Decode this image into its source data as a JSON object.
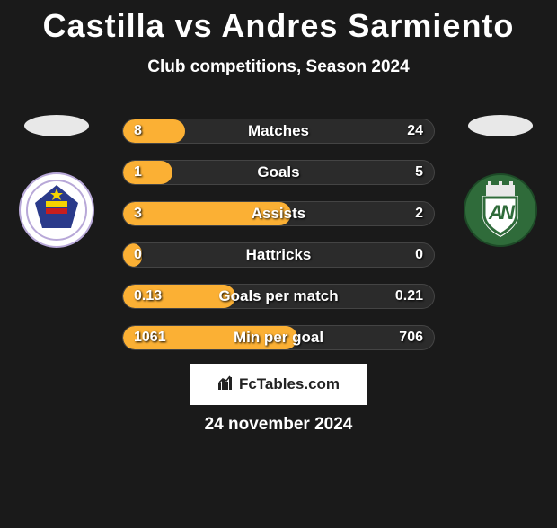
{
  "header": {
    "title": "Castilla vs Andres Sarmiento",
    "subtitle": "Club competitions, Season 2024"
  },
  "bars": {
    "track_color": "#2b2b2b",
    "fill_color": "#fbb034",
    "border_color": "rgba(255,255,255,0.12)",
    "label_fontsize": 17,
    "value_fontsize": 16,
    "rows": [
      {
        "label": "Matches",
        "left": "8",
        "right": "24",
        "fill_pct": 20
      },
      {
        "label": "Goals",
        "left": "1",
        "right": "5",
        "fill_pct": 16
      },
      {
        "label": "Assists",
        "left": "3",
        "right": "2",
        "fill_pct": 54
      },
      {
        "label": "Hattricks",
        "left": "0",
        "right": "0",
        "fill_pct": 6
      },
      {
        "label": "Goals per match",
        "left": "0.13",
        "right": "0.21",
        "fill_pct": 36
      },
      {
        "label": "Min per goal",
        "left": "1061",
        "right": "706",
        "fill_pct": 56
      }
    ]
  },
  "players": {
    "left_club": {
      "bg": "#ffffff",
      "ring": "#b8a8d8"
    },
    "right_club": {
      "bg": "#2f6b3a",
      "ring": "#e8e8e8"
    }
  },
  "footer": {
    "brand": "FcTables.com",
    "date": "24 november 2024"
  }
}
